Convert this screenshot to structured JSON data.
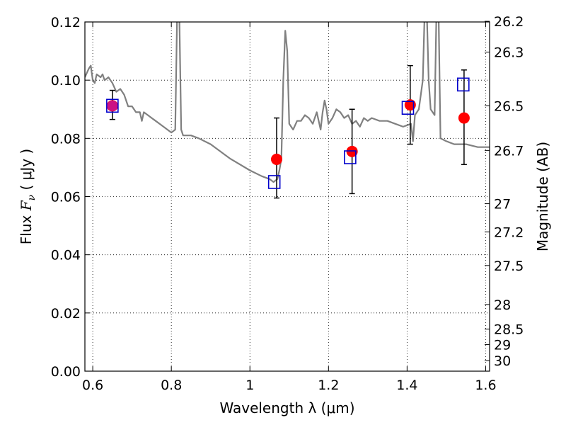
{
  "chart_data": {
    "type": "scatter",
    "title": "",
    "xlabel": "Wavelength  λ (μm)",
    "ylabel": {
      "prefix": "Flux  ",
      "symbol": "F",
      "subscript": "ν",
      "suffix": "  ( μJy )"
    },
    "y2label": "Magnitude (AB)",
    "xlim": [
      0.58,
      1.61
    ],
    "ylim": [
      0.0,
      0.12
    ],
    "grid": true,
    "x_ticks": [
      {
        "value": 0.6,
        "label": "0.6"
      },
      {
        "value": 0.8,
        "label": "0.8"
      },
      {
        "value": 1.0,
        "label": "1"
      },
      {
        "value": 1.2,
        "label": "1.2"
      },
      {
        "value": 1.4,
        "label": "1.4"
      },
      {
        "value": 1.6,
        "label": "1.6"
      }
    ],
    "y_ticks": [
      {
        "value": 0.0,
        "label": "0.00"
      },
      {
        "value": 0.02,
        "label": "0.02"
      },
      {
        "value": 0.04,
        "label": "0.04"
      },
      {
        "value": 0.06,
        "label": "0.06"
      },
      {
        "value": 0.08,
        "label": "0.08"
      },
      {
        "value": 0.1,
        "label": "0.10"
      },
      {
        "value": 0.12,
        "label": "0.12"
      }
    ],
    "y2_ticks": [
      {
        "mag": 26.2,
        "label": "26.2"
      },
      {
        "mag": 26.3,
        "label": "26.3"
      },
      {
        "mag": 26.5,
        "label": "26.5"
      },
      {
        "mag": 26.7,
        "label": "26.7"
      },
      {
        "mag": 27.0,
        "label": "27"
      },
      {
        "mag": 27.2,
        "label": "27.2"
      },
      {
        "mag": 27.5,
        "label": "27.5"
      },
      {
        "mag": 28.0,
        "label": "28"
      },
      {
        "mag": 28.5,
        "label": "28.5"
      },
      {
        "mag": 29.0,
        "label": "29"
      },
      {
        "mag": 30.0,
        "label": "30"
      }
    ],
    "series": [
      {
        "kind": "line",
        "color": "#808080",
        "points": [
          [
            0.58,
            0.101
          ],
          [
            0.59,
            0.104
          ],
          [
            0.595,
            0.105
          ],
          [
            0.6,
            0.1
          ],
          [
            0.605,
            0.099
          ],
          [
            0.61,
            0.102
          ],
          [
            0.62,
            0.101
          ],
          [
            0.625,
            0.102
          ],
          [
            0.63,
            0.1
          ],
          [
            0.64,
            0.101
          ],
          [
            0.65,
            0.099
          ],
          [
            0.66,
            0.096
          ],
          [
            0.67,
            0.097
          ],
          [
            0.68,
            0.095
          ],
          [
            0.69,
            0.091
          ],
          [
            0.7,
            0.091
          ],
          [
            0.71,
            0.089
          ],
          [
            0.72,
            0.089
          ],
          [
            0.725,
            0.086
          ],
          [
            0.73,
            0.089
          ],
          [
            0.74,
            0.088
          ],
          [
            0.75,
            0.087
          ],
          [
            0.76,
            0.086
          ],
          [
            0.77,
            0.085
          ],
          [
            0.78,
            0.084
          ],
          [
            0.79,
            0.083
          ],
          [
            0.8,
            0.082
          ],
          [
            0.81,
            0.083
          ],
          [
            0.815,
            0.125
          ],
          [
            0.82,
            0.125
          ],
          [
            0.825,
            0.083
          ],
          [
            0.83,
            0.081
          ],
          [
            0.85,
            0.081
          ],
          [
            0.87,
            0.08
          ],
          [
            0.9,
            0.078
          ],
          [
            0.95,
            0.073
          ],
          [
            1.0,
            0.069
          ],
          [
            1.03,
            0.067
          ],
          [
            1.05,
            0.066
          ],
          [
            1.06,
            0.065
          ],
          [
            1.07,
            0.066
          ],
          [
            1.075,
            0.069
          ],
          [
            1.08,
            0.073
          ],
          [
            1.085,
            0.1
          ],
          [
            1.09,
            0.117
          ],
          [
            1.095,
            0.11
          ],
          [
            1.1,
            0.085
          ],
          [
            1.11,
            0.083
          ],
          [
            1.12,
            0.086
          ],
          [
            1.13,
            0.086
          ],
          [
            1.14,
            0.088
          ],
          [
            1.15,
            0.087
          ],
          [
            1.16,
            0.085
          ],
          [
            1.17,
            0.089
          ],
          [
            1.18,
            0.083
          ],
          [
            1.185,
            0.089
          ],
          [
            1.19,
            0.093
          ],
          [
            1.195,
            0.09
          ],
          [
            1.2,
            0.085
          ],
          [
            1.21,
            0.087
          ],
          [
            1.22,
            0.09
          ],
          [
            1.23,
            0.089
          ],
          [
            1.24,
            0.087
          ],
          [
            1.25,
            0.088
          ],
          [
            1.26,
            0.085
          ],
          [
            1.27,
            0.086
          ],
          [
            1.28,
            0.084
          ],
          [
            1.29,
            0.087
          ],
          [
            1.3,
            0.086
          ],
          [
            1.31,
            0.087
          ],
          [
            1.33,
            0.086
          ],
          [
            1.35,
            0.086
          ],
          [
            1.37,
            0.085
          ],
          [
            1.39,
            0.084
          ],
          [
            1.41,
            0.085
          ],
          [
            1.415,
            0.079
          ],
          [
            1.42,
            0.088
          ],
          [
            1.43,
            0.09
          ],
          [
            1.44,
            0.1
          ],
          [
            1.445,
            0.125
          ],
          [
            1.45,
            0.125
          ],
          [
            1.455,
            0.1
          ],
          [
            1.46,
            0.09
          ],
          [
            1.47,
            0.088
          ],
          [
            1.475,
            0.125
          ],
          [
            1.48,
            0.125
          ],
          [
            1.485,
            0.08
          ],
          [
            1.5,
            0.079
          ],
          [
            1.52,
            0.078
          ],
          [
            1.55,
            0.078
          ],
          [
            1.58,
            0.077
          ],
          [
            1.61,
            0.077
          ]
        ]
      },
      {
        "kind": "errorbar",
        "color": "#000000",
        "points": [
          {
            "x": 0.65,
            "ylo": 0.0865,
            "yhi": 0.0965
          },
          {
            "x": 1.068,
            "ylo": 0.0595,
            "yhi": 0.087
          },
          {
            "x": 1.26,
            "ylo": 0.061,
            "yhi": 0.09
          },
          {
            "x": 1.408,
            "ylo": 0.078,
            "yhi": 0.105
          },
          {
            "x": 1.545,
            "ylo": 0.071,
            "yhi": 0.1035
          }
        ]
      },
      {
        "kind": "marker",
        "marker": "circle",
        "color": "#ff0000",
        "points": [
          [
            0.65,
            0.0912
          ],
          [
            1.068,
            0.0728
          ],
          [
            1.26,
            0.0755
          ],
          [
            1.408,
            0.0915
          ],
          [
            1.545,
            0.087
          ]
        ]
      },
      {
        "kind": "marker",
        "marker": "square",
        "color": "#0000cc",
        "points": [
          [
            0.65,
            0.0912
          ],
          [
            1.062,
            0.065
          ],
          [
            1.255,
            0.0735
          ],
          [
            1.402,
            0.0905
          ],
          [
            1.543,
            0.0985
          ]
        ]
      }
    ]
  }
}
